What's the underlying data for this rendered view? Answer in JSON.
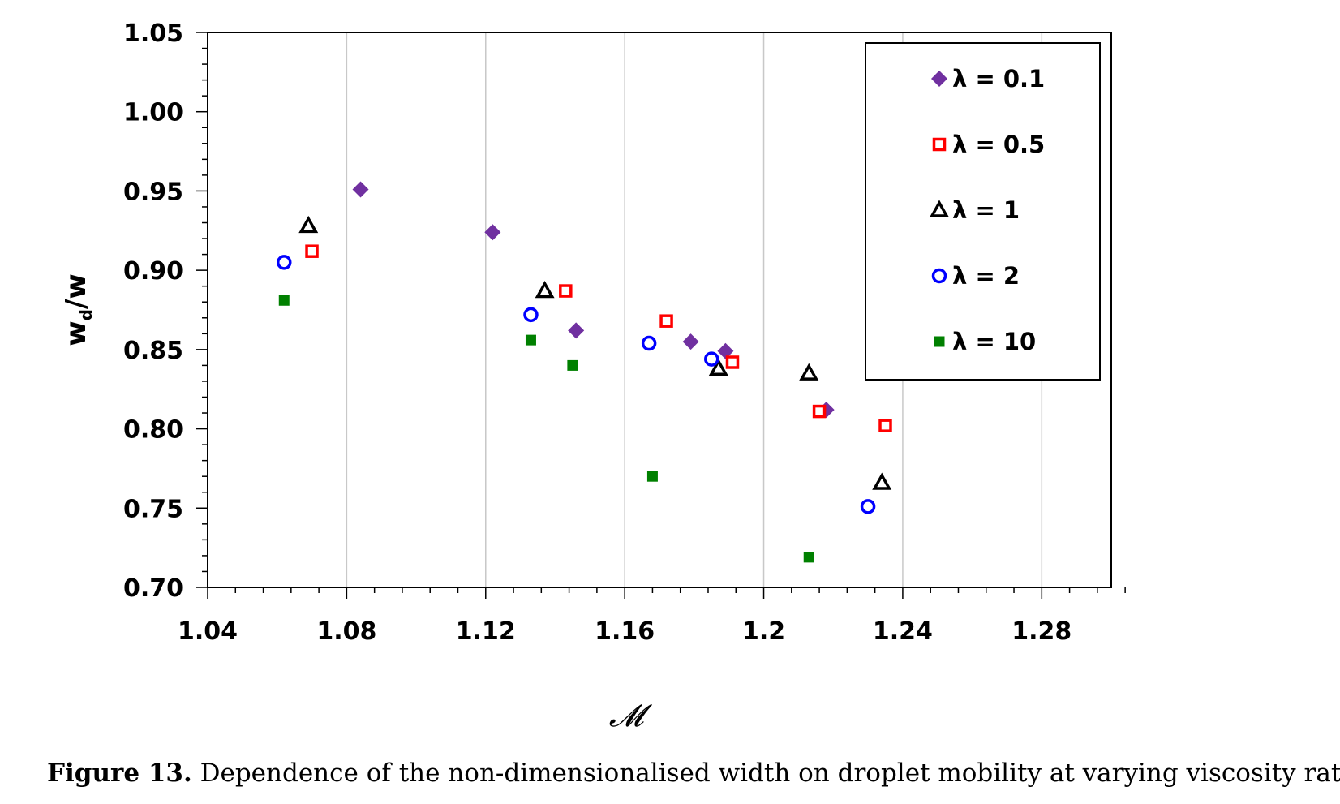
{
  "chart_data": {
    "type": "scatter",
    "xlabel": "𝓜",
    "ylabel": "wd/w",
    "ylabel_main": "w",
    "ylabel_sub": "d",
    "ylabel_tail": "/w",
    "xlim": [
      1.04,
      1.3
    ],
    "ylim": [
      0.7,
      1.05
    ],
    "xticks": [
      1.04,
      1.08,
      1.12,
      1.16,
      1.2,
      1.24,
      1.28
    ],
    "xtick_labels": [
      "1.04",
      "1.08",
      "1.12",
      "1.16",
      "1.2",
      "1.24",
      "1.28"
    ],
    "yticks": [
      0.7,
      0.75,
      0.8,
      0.85,
      0.9,
      0.95,
      1.0,
      1.05
    ],
    "ytick_labels": [
      "0.70",
      "0.75",
      "0.80",
      "0.85",
      "0.90",
      "0.95",
      "1.00",
      "1.05"
    ],
    "grid": "vertical",
    "legend_position": "top-right",
    "series": [
      {
        "name": "λ = 0.1",
        "marker": "diamond",
        "color": "#7030A0",
        "x": [
          1.084,
          1.122,
          1.146,
          1.179,
          1.189,
          1.218
        ],
        "y": [
          0.951,
          0.924,
          0.862,
          0.855,
          0.849,
          0.812
        ]
      },
      {
        "name": "λ = 0.5",
        "marker": "open-square",
        "color": "#FF0000",
        "x": [
          1.07,
          1.143,
          1.172,
          1.191,
          1.216,
          1.235
        ],
        "y": [
          0.912,
          0.887,
          0.868,
          0.842,
          0.811,
          0.802
        ]
      },
      {
        "name": "λ = 1",
        "marker": "open-triangle",
        "color": "#000000",
        "x": [
          1.069,
          1.137,
          1.187,
          1.213,
          1.234
        ],
        "y": [
          0.928,
          0.887,
          0.838,
          0.835,
          0.766
        ]
      },
      {
        "name": "λ = 2",
        "marker": "open-circle",
        "color": "#0000FF",
        "x": [
          1.062,
          1.133,
          1.167,
          1.185,
          1.23
        ],
        "y": [
          0.905,
          0.872,
          0.854,
          0.844,
          0.751
        ]
      },
      {
        "name": "λ = 10",
        "marker": "filled-square",
        "color": "#008000",
        "x": [
          1.062,
          1.133,
          1.145,
          1.168,
          1.213
        ],
        "y": [
          0.881,
          0.856,
          0.84,
          0.77,
          0.719
        ]
      }
    ]
  },
  "caption": {
    "label": "Figure 13.",
    "text": " Dependence of the non-dimensionalised width on droplet mobility at varying viscosity ratios."
  }
}
